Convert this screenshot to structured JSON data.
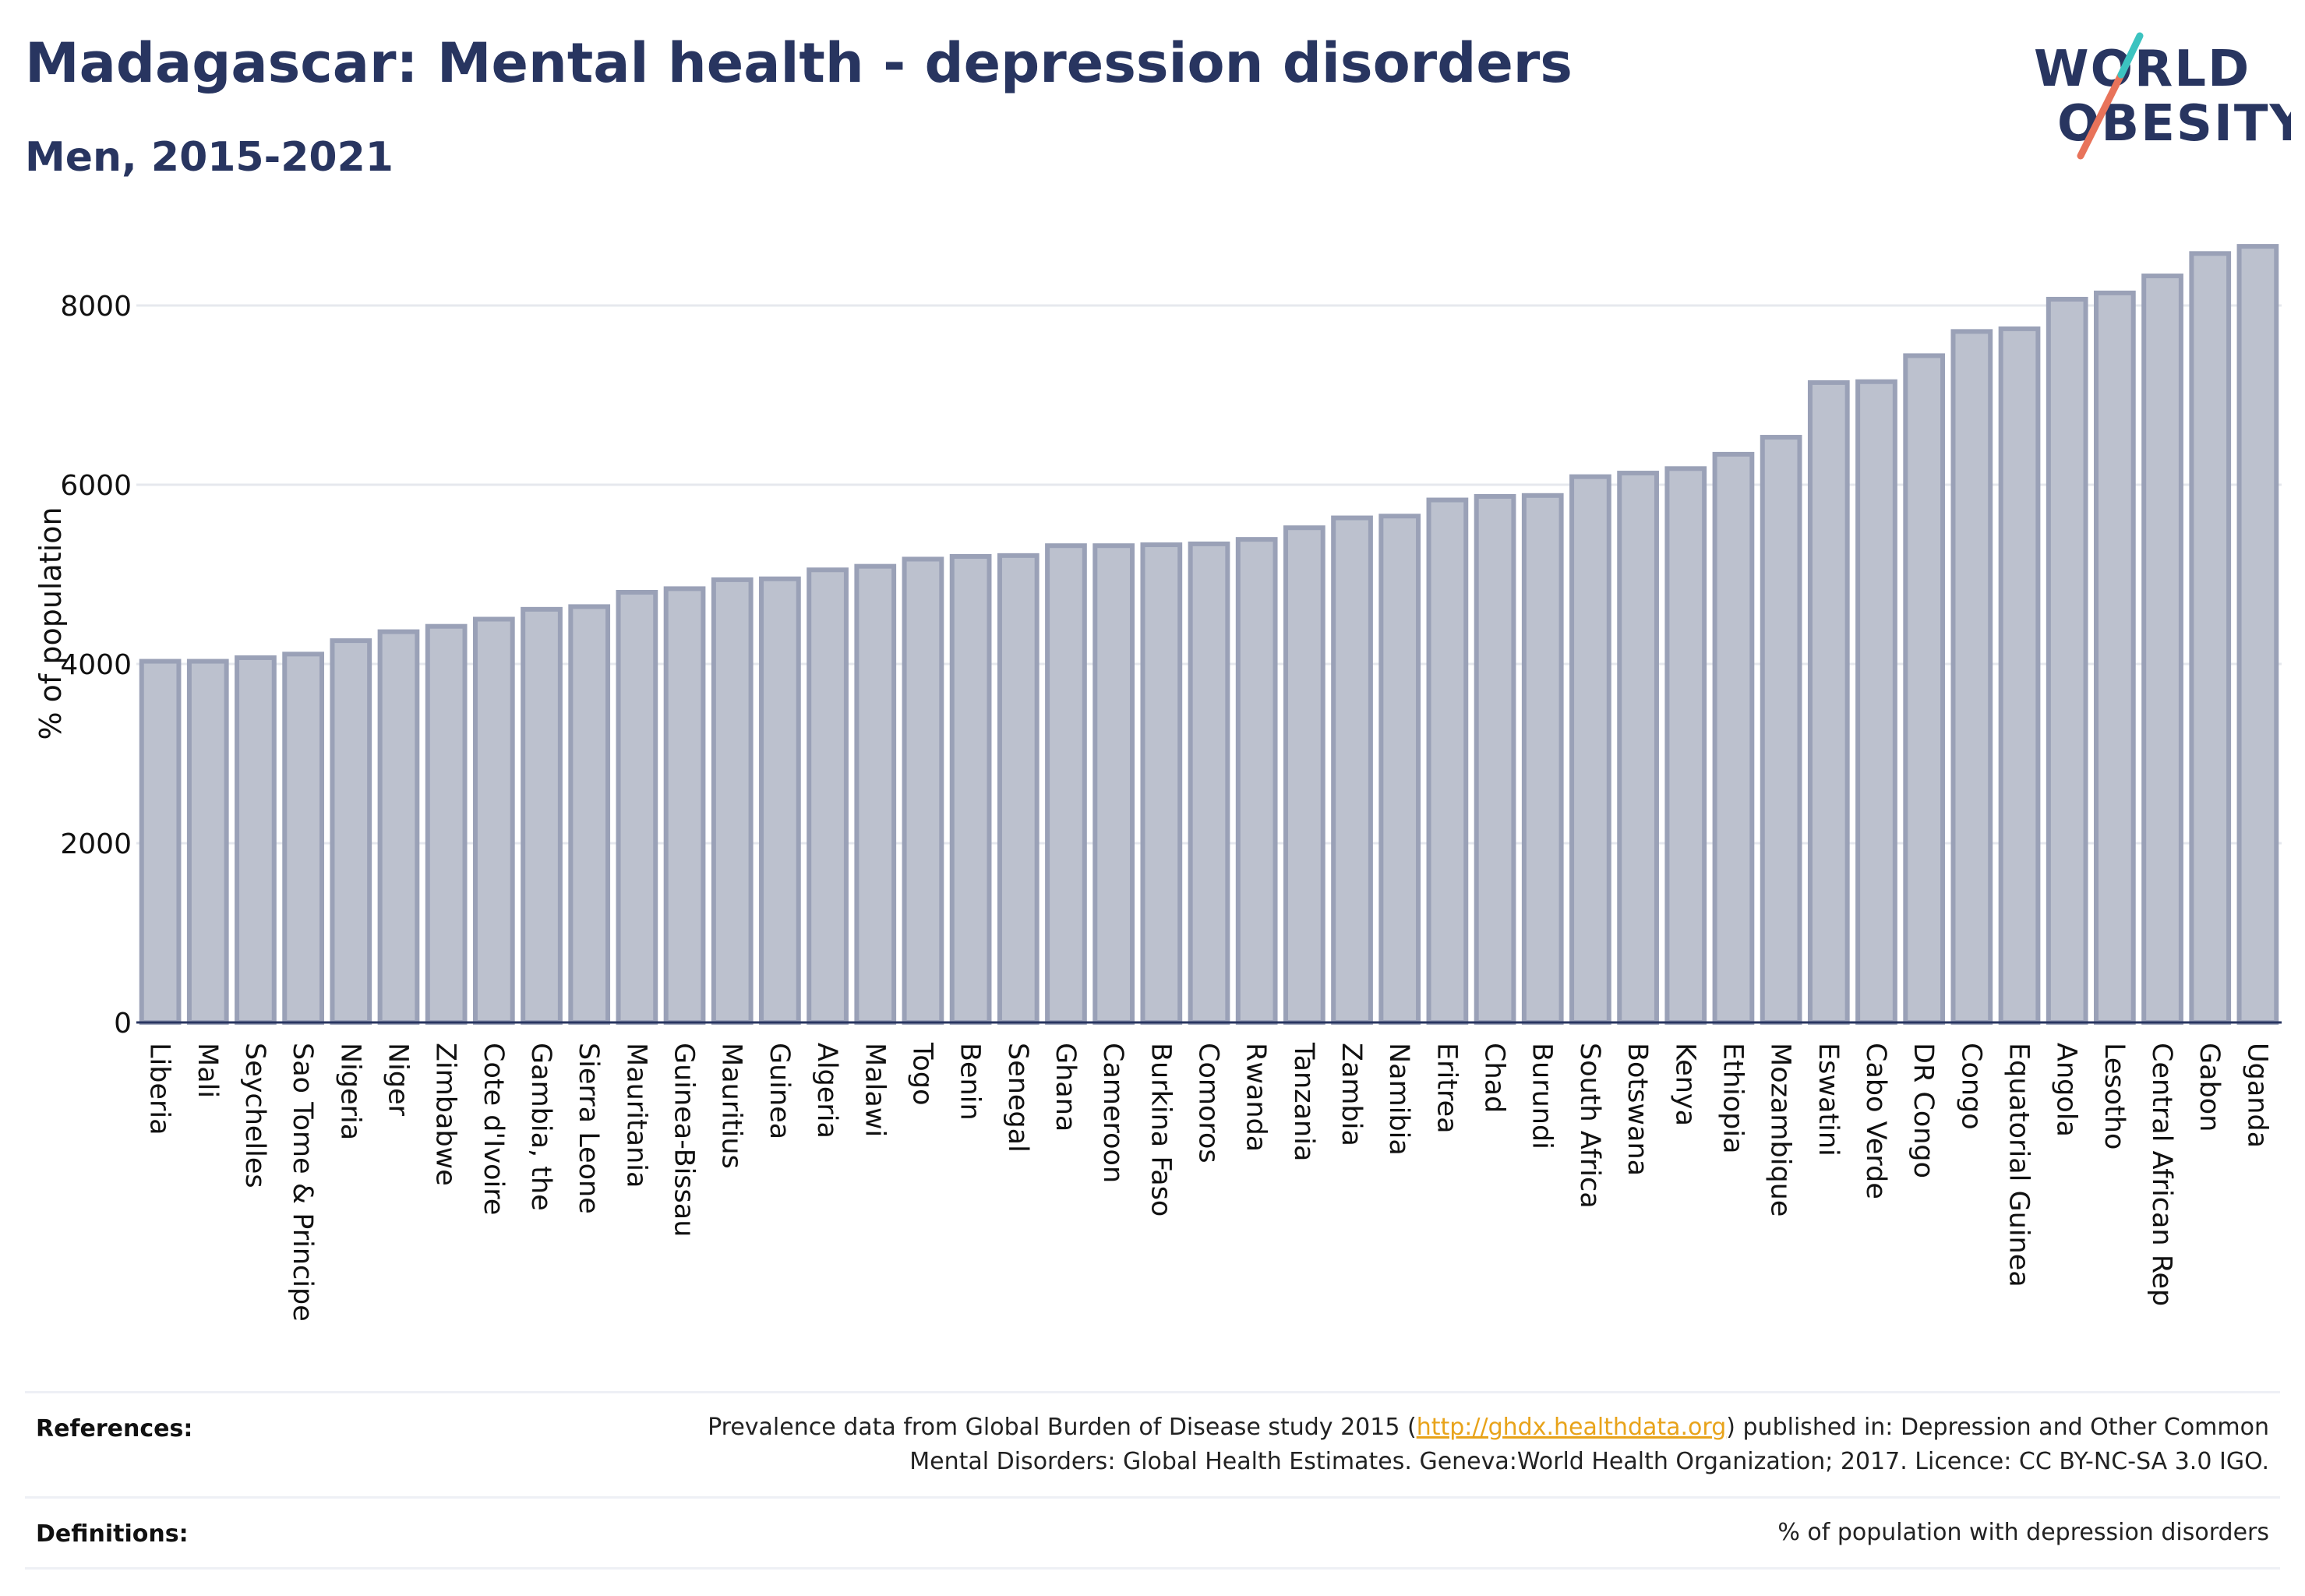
{
  "header": {
    "title": "Madagascar: Mental health - depression disorders",
    "subtitle": "Men, 2015-2021"
  },
  "logo": {
    "line1": "WORLD",
    "line2": "OBESITY"
  },
  "colors": {
    "bar_fill": "#bcc1ce",
    "bar_stroke": "#9aa1b7",
    "title": "#283560",
    "grid": "#e6e8ee",
    "link": "#e8a31a"
  },
  "chart_data": {
    "type": "bar",
    "ylabel": "% of population",
    "xlabel": "",
    "ylim": [
      0,
      8800
    ],
    "yticks": [
      0,
      2000,
      4000,
      6000,
      8000
    ],
    "grid": true,
    "categories": [
      "Liberia",
      "Mali",
      "Seychelles",
      "Sao Tome & Principe",
      "Nigeria",
      "Niger",
      "Zimbabwe",
      "Cote d'Ivoire",
      "Gambia, the",
      "Sierra Leone",
      "Mauritania",
      "Guinea-Bissau",
      "Mauritius",
      "Guinea",
      "Algeria",
      "Malawi",
      "Togo",
      "Benin",
      "Senegal",
      "Ghana",
      "Cameroon",
      "Burkina Faso",
      "Comoros",
      "Rwanda",
      "Tanzania",
      "Zambia",
      "Namibia",
      "Eritrea",
      "Chad",
      "Burundi",
      "South Africa",
      "Botswana",
      "Kenya",
      "Ethiopia",
      "Mozambique",
      "Eswatini",
      "Cabo Verde",
      "DR Congo",
      "Congo",
      "Equatorial Guinea",
      "Angola",
      "Lesotho",
      "Central African Rep",
      "Gabon",
      "Uganda"
    ],
    "values": [
      4030,
      4030,
      4070,
      4110,
      4260,
      4360,
      4420,
      4500,
      4610,
      4640,
      4800,
      4840,
      4940,
      4950,
      5050,
      5090,
      5170,
      5200,
      5210,
      5320,
      5320,
      5330,
      5340,
      5390,
      5520,
      5630,
      5650,
      5830,
      5870,
      5880,
      6090,
      6130,
      6180,
      6340,
      6530,
      7140,
      7150,
      7440,
      7710,
      7740,
      8070,
      8140,
      8330,
      8580,
      8660
    ]
  },
  "footer": {
    "references_label": "References:",
    "references_pre": "Prevalence data from Global Burden of Disease study 2015 (",
    "references_link": "http://ghdx.healthdata.org",
    "references_post": ") published in: Depression and Other Common",
    "references_line2": "Mental Disorders: Global Health Estimates. Geneva:World Health Organization; 2017. Licence: CC BY-NC-SA 3.0 IGO.",
    "definitions_label": "Definitions:",
    "definitions_text": "% of population with depression disorders"
  }
}
